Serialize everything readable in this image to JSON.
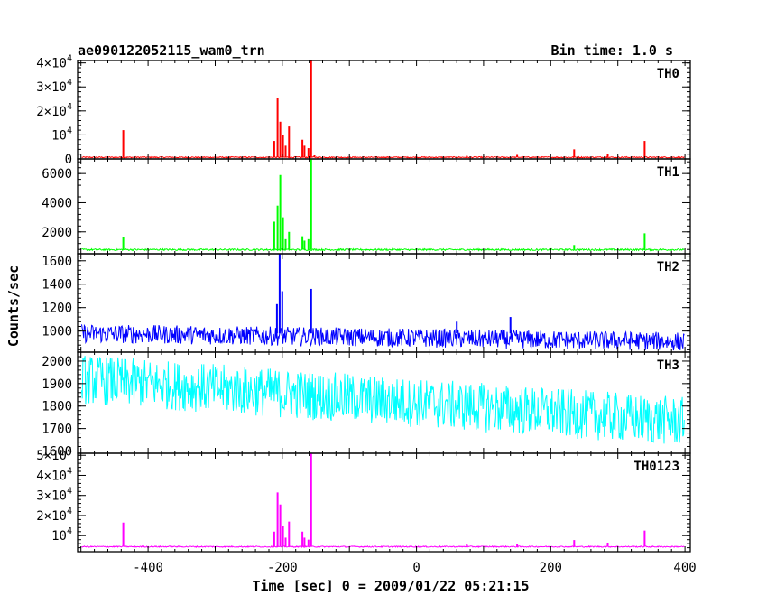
{
  "header": {
    "title": "ae090122052115_wam0_trn",
    "bin_time": "Bin time: 1.0 s"
  },
  "chart_data": {
    "type": "line",
    "x_label": "Time [sec] 0 = 2009/01/22 05:21:15",
    "y_label": "Counts/sec",
    "x_range": [
      -505,
      408
    ],
    "x_ticks": [
      {
        "value": -400,
        "label": "-400"
      },
      {
        "value": -200,
        "label": "-200"
      },
      {
        "value": 0,
        "label": "0"
      },
      {
        "value": 200,
        "label": "200"
      },
      {
        "value": 400,
        "label": "400"
      }
    ],
    "panels": [
      {
        "name": "TH0",
        "color": "#ff0000",
        "ylim": [
          0,
          41000
        ],
        "yticks": [
          {
            "value": 0,
            "label": "0"
          },
          {
            "value": 10000,
            "base": "10",
            "exp": "4"
          },
          {
            "value": 20000,
            "base": "2×10",
            "exp": "4"
          },
          {
            "value": 30000,
            "base": "3×10",
            "exp": "4"
          },
          {
            "value": 40000,
            "base": "4×10",
            "exp": "4"
          }
        ],
        "baseline": 700,
        "noise": 250,
        "trend": 0,
        "spikes": [
          [
            -437,
            12000
          ],
          [
            -212,
            7500
          ],
          [
            -207,
            25500
          ],
          [
            -203,
            15500
          ],
          [
            -199,
            10000
          ],
          [
            -195,
            5500
          ],
          [
            -190,
            13500
          ],
          [
            -170,
            8000
          ],
          [
            -167,
            5500
          ],
          [
            -161,
            4500
          ],
          [
            -157,
            41000
          ],
          [
            -152,
            1500
          ],
          [
            75,
            1300
          ],
          [
            150,
            1700
          ],
          [
            235,
            4000
          ],
          [
            285,
            2200
          ],
          [
            340,
            7500
          ]
        ]
      },
      {
        "name": "TH1",
        "color": "#00ff00",
        "ylim": [
          500,
          7000
        ],
        "yticks": [
          {
            "value": 2000,
            "label": "2000"
          },
          {
            "value": 4000,
            "label": "4000"
          },
          {
            "value": 6000,
            "label": "6000"
          }
        ],
        "baseline": 780,
        "noise": 60,
        "trend": 0,
        "spikes": [
          [
            -437,
            1650
          ],
          [
            -212,
            2700
          ],
          [
            -207,
            3800
          ],
          [
            -203,
            5900
          ],
          [
            -199,
            3000
          ],
          [
            -195,
            1500
          ],
          [
            -190,
            2000
          ],
          [
            -170,
            1700
          ],
          [
            -167,
            1400
          ],
          [
            -161,
            1500
          ],
          [
            -157,
            7000
          ],
          [
            235,
            1100
          ],
          [
            340,
            1900
          ]
        ]
      },
      {
        "name": "TH2",
        "color": "#0000ff",
        "ylim": [
          820,
          1660
        ],
        "yticks": [
          {
            "value": 1000,
            "label": "1000"
          },
          {
            "value": 1200,
            "label": "1200"
          },
          {
            "value": 1400,
            "label": "1400"
          },
          {
            "value": 1600,
            "label": "1600"
          }
        ],
        "baseline": 980,
        "noise": 80,
        "trend": -70,
        "spikes": [
          [
            -208,
            1230
          ],
          [
            -204,
            1660
          ],
          [
            -200,
            1340
          ],
          [
            -157,
            1360
          ],
          [
            140,
            1120
          ],
          [
            60,
            1080
          ]
        ]
      },
      {
        "name": "TH3",
        "color": "#00ffff",
        "ylim": [
          1590,
          2040
        ],
        "yticks": [
          {
            "value": 1600,
            "label": "1600"
          },
          {
            "value": 1700,
            "label": "1700"
          },
          {
            "value": 1800,
            "label": "1800"
          },
          {
            "value": 1900,
            "label": "1900"
          },
          {
            "value": 2000,
            "label": "2000"
          }
        ],
        "baseline": 1920,
        "noise": 110,
        "trend": -190,
        "spikes": []
      },
      {
        "name": "TH0123",
        "color": "#ff00ff",
        "ylim": [
          2000,
          51000
        ],
        "yticks": [
          {
            "value": 10000,
            "base": "10",
            "exp": "4"
          },
          {
            "value": 20000,
            "base": "2×10",
            "exp": "4"
          },
          {
            "value": 30000,
            "base": "3×10",
            "exp": "4"
          },
          {
            "value": 40000,
            "base": "4×10",
            "exp": "4"
          },
          {
            "value": 50000,
            "base": "5×10",
            "exp": "4"
          }
        ],
        "baseline": 4500,
        "noise": 300,
        "trend": 0,
        "spikes": [
          [
            -437,
            16500
          ],
          [
            -212,
            12000
          ],
          [
            -207,
            31500
          ],
          [
            -203,
            25500
          ],
          [
            -199,
            15000
          ],
          [
            -195,
            9000
          ],
          [
            -190,
            17000
          ],
          [
            -170,
            12000
          ],
          [
            -167,
            9000
          ],
          [
            -161,
            8000
          ],
          [
            -157,
            51000
          ],
          [
            75,
            5800
          ],
          [
            150,
            6000
          ],
          [
            235,
            7800
          ],
          [
            285,
            6500
          ],
          [
            340,
            12500
          ]
        ]
      }
    ]
  }
}
